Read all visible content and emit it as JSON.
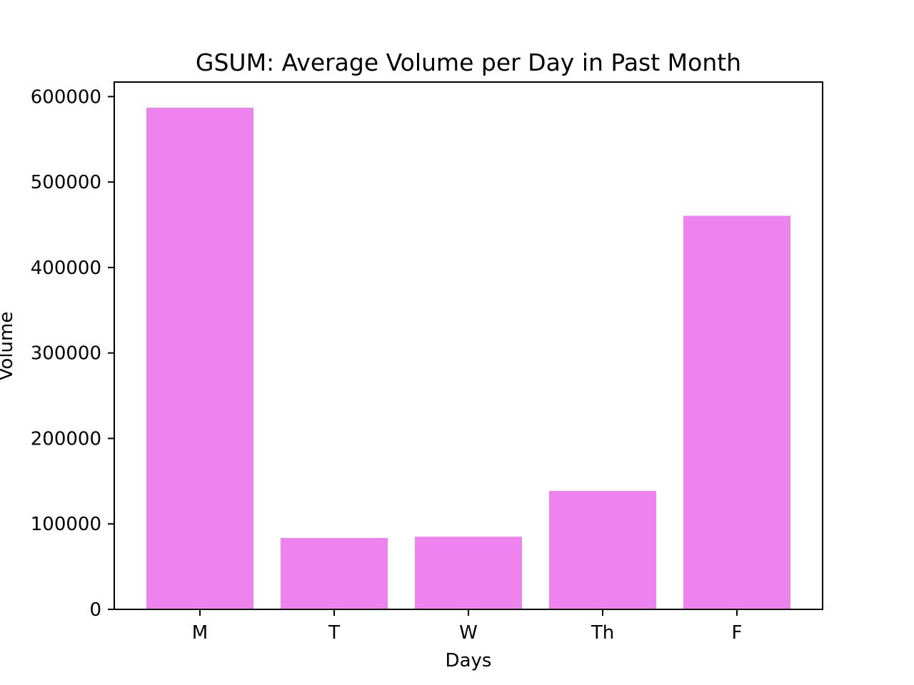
{
  "chart_data": {
    "type": "bar",
    "title": "GSUM: Average Volume per Day in Past Month",
    "xlabel": "Days",
    "ylabel": "Volume",
    "categories": [
      "M",
      "T",
      "W",
      "Th",
      "F"
    ],
    "values": [
      587000,
      83500,
      85000,
      138500,
      460500
    ],
    "ylim": [
      0,
      617000
    ],
    "yticks": [
      0,
      100000,
      200000,
      300000,
      400000,
      500000,
      600000
    ],
    "ytick_labels": [
      "0",
      "100000",
      "200000",
      "300000",
      "400000",
      "500000",
      "600000"
    ],
    "bar_color": "#ee82ee",
    "grid": false,
    "legend": "none"
  }
}
